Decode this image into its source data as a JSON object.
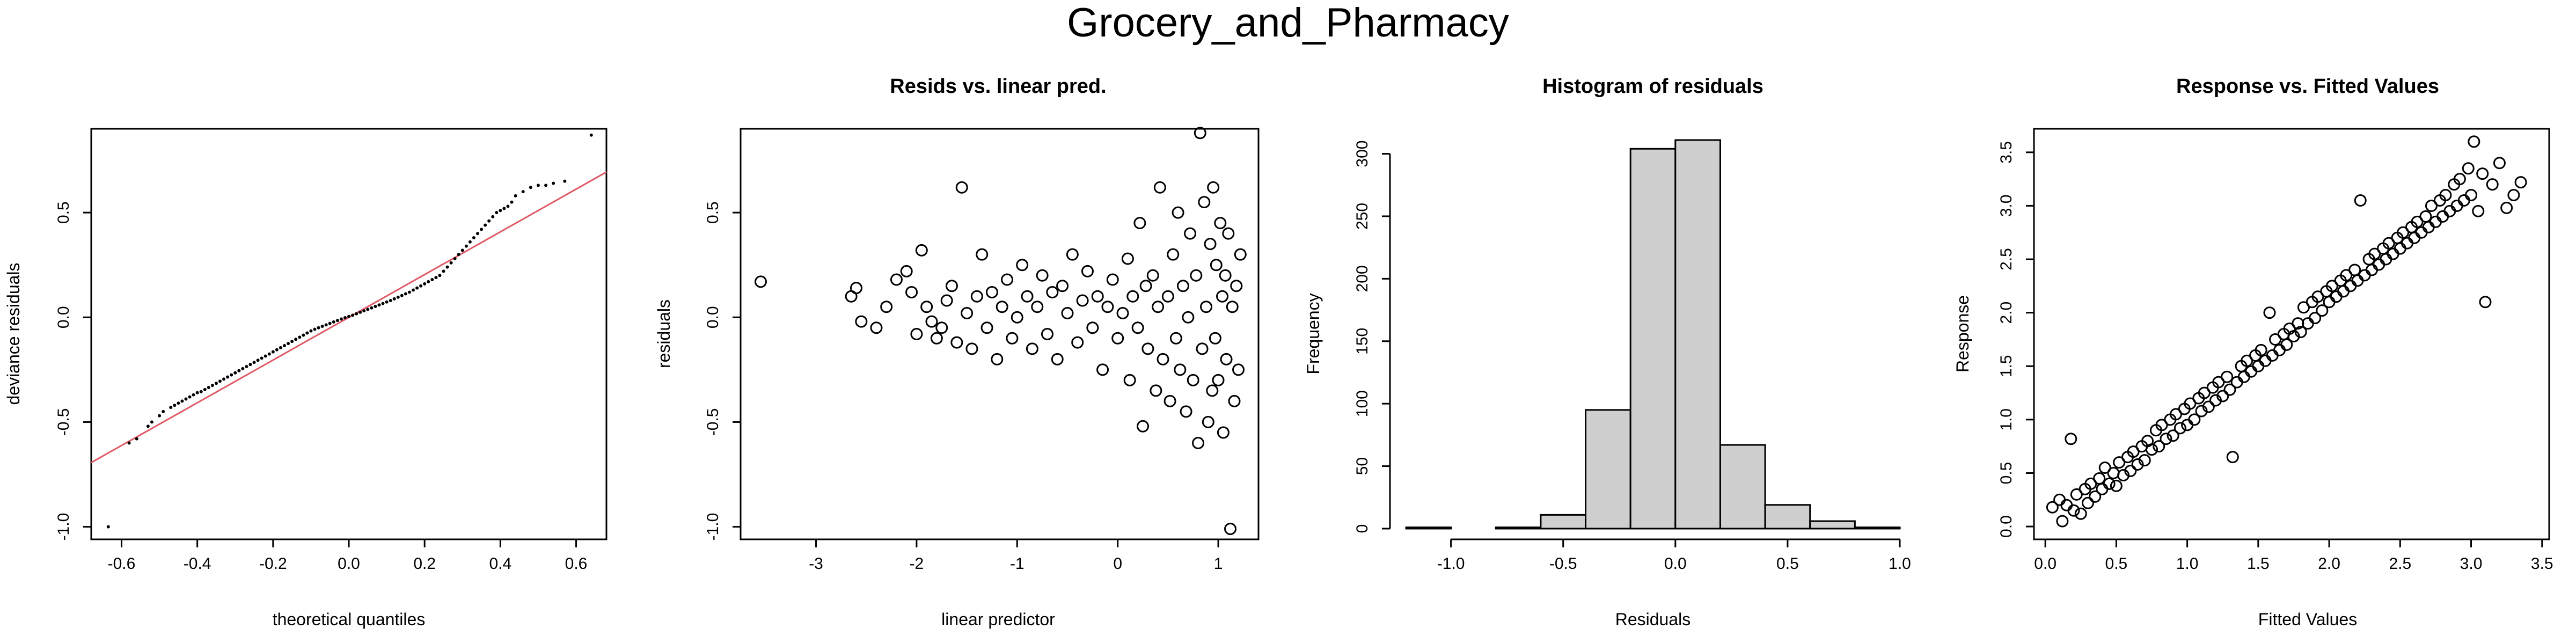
{
  "figure": {
    "title": "Grocery_and_Pharmacy"
  },
  "chart_data": [
    {
      "type": "scatter",
      "title": "",
      "xlabel": "theoretical quantiles",
      "ylabel": "deviance residuals",
      "xlim": [
        -0.68,
        0.68
      ],
      "ylim": [
        -1.06,
        0.9
      ],
      "xticks": [
        -0.6,
        -0.4,
        -0.2,
        0.0,
        0.2,
        0.4,
        0.6
      ],
      "yticks": [
        -1.0,
        -0.5,
        0.0,
        0.5
      ],
      "reference_line": {
        "slope": 1.02,
        "intercept": 0.0,
        "color": "#e05a66"
      },
      "points": [
        [
          -0.635,
          -1.0
        ],
        [
          -0.58,
          -0.6
        ],
        [
          -0.56,
          -0.58
        ],
        [
          -0.53,
          -0.52
        ],
        [
          -0.52,
          -0.5
        ],
        [
          -0.5,
          -0.47
        ],
        [
          -0.49,
          -0.45
        ],
        [
          -0.47,
          -0.43
        ],
        [
          -0.46,
          -0.42
        ],
        [
          -0.45,
          -0.41
        ],
        [
          -0.44,
          -0.4
        ],
        [
          -0.43,
          -0.39
        ],
        [
          -0.42,
          -0.38
        ],
        [
          -0.41,
          -0.37
        ],
        [
          -0.4,
          -0.36
        ],
        [
          -0.39,
          -0.355
        ],
        [
          -0.38,
          -0.345
        ],
        [
          -0.37,
          -0.335
        ],
        [
          -0.36,
          -0.325
        ],
        [
          -0.35,
          -0.315
        ],
        [
          -0.34,
          -0.305
        ],
        [
          -0.33,
          -0.295
        ],
        [
          -0.32,
          -0.285
        ],
        [
          -0.31,
          -0.275
        ],
        [
          -0.3,
          -0.265
        ],
        [
          -0.29,
          -0.255
        ],
        [
          -0.28,
          -0.245
        ],
        [
          -0.27,
          -0.235
        ],
        [
          -0.26,
          -0.225
        ],
        [
          -0.25,
          -0.215
        ],
        [
          -0.24,
          -0.205
        ],
        [
          -0.23,
          -0.195
        ],
        [
          -0.22,
          -0.185
        ],
        [
          -0.21,
          -0.175
        ],
        [
          -0.2,
          -0.165
        ],
        [
          -0.19,
          -0.155
        ],
        [
          -0.18,
          -0.145
        ],
        [
          -0.17,
          -0.135
        ],
        [
          -0.16,
          -0.125
        ],
        [
          -0.15,
          -0.115
        ],
        [
          -0.14,
          -0.105
        ],
        [
          -0.13,
          -0.095
        ],
        [
          -0.12,
          -0.085
        ],
        [
          -0.11,
          -0.075
        ],
        [
          -0.1,
          -0.065
        ],
        [
          -0.09,
          -0.057
        ],
        [
          -0.08,
          -0.05
        ],
        [
          -0.07,
          -0.043
        ],
        [
          -0.06,
          -0.036
        ],
        [
          -0.05,
          -0.029
        ],
        [
          -0.04,
          -0.022
        ],
        [
          -0.03,
          -0.015
        ],
        [
          -0.02,
          -0.008
        ],
        [
          -0.01,
          -0.002
        ],
        [
          0.0,
          0.004
        ],
        [
          0.01,
          0.01
        ],
        [
          0.02,
          0.017
        ],
        [
          0.03,
          0.024
        ],
        [
          0.04,
          0.031
        ],
        [
          0.05,
          0.038
        ],
        [
          0.06,
          0.045
        ],
        [
          0.07,
          0.052
        ],
        [
          0.08,
          0.059
        ],
        [
          0.09,
          0.066
        ],
        [
          0.1,
          0.073
        ],
        [
          0.11,
          0.08
        ],
        [
          0.12,
          0.088
        ],
        [
          0.13,
          0.096
        ],
        [
          0.14,
          0.104
        ],
        [
          0.15,
          0.112
        ],
        [
          0.16,
          0.12
        ],
        [
          0.17,
          0.13
        ],
        [
          0.18,
          0.14
        ],
        [
          0.19,
          0.15
        ],
        [
          0.2,
          0.16
        ],
        [
          0.21,
          0.17
        ],
        [
          0.22,
          0.18
        ],
        [
          0.23,
          0.19
        ],
        [
          0.24,
          0.2
        ],
        [
          0.25,
          0.22
        ],
        [
          0.26,
          0.24
        ],
        [
          0.27,
          0.26
        ],
        [
          0.28,
          0.28
        ],
        [
          0.29,
          0.3
        ],
        [
          0.3,
          0.32
        ],
        [
          0.31,
          0.34
        ],
        [
          0.32,
          0.36
        ],
        [
          0.33,
          0.38
        ],
        [
          0.34,
          0.4
        ],
        [
          0.35,
          0.42
        ],
        [
          0.36,
          0.44
        ],
        [
          0.37,
          0.46
        ],
        [
          0.38,
          0.48
        ],
        [
          0.39,
          0.5
        ],
        [
          0.4,
          0.51
        ],
        [
          0.41,
          0.52
        ],
        [
          0.42,
          0.53
        ],
        [
          0.43,
          0.55
        ],
        [
          0.44,
          0.58
        ],
        [
          0.46,
          0.6
        ],
        [
          0.48,
          0.62
        ],
        [
          0.5,
          0.63
        ],
        [
          0.52,
          0.63
        ],
        [
          0.54,
          0.64
        ],
        [
          0.57,
          0.65
        ],
        [
          0.64,
          0.87
        ]
      ]
    },
    {
      "type": "scatter",
      "title": "Resids vs. linear pred.",
      "xlabel": "linear predictor",
      "ylabel": "residuals",
      "xlim": [
        -3.75,
        1.4
      ],
      "ylim": [
        -1.06,
        0.9
      ],
      "xticks": [
        -3,
        -2,
        -1,
        0,
        1
      ],
      "yticks": [
        -1.0,
        -0.5,
        0.0,
        0.5
      ],
      "points": [
        [
          -3.55,
          0.17
        ],
        [
          -2.65,
          0.1
        ],
        [
          -2.6,
          0.14
        ],
        [
          -2.55,
          -0.02
        ],
        [
          -2.4,
          -0.05
        ],
        [
          -2.3,
          0.05
        ],
        [
          -2.2,
          0.18
        ],
        [
          -2.1,
          0.22
        ],
        [
          -2.05,
          0.12
        ],
        [
          -2.0,
          -0.08
        ],
        [
          -1.95,
          0.32
        ],
        [
          -1.9,
          0.05
        ],
        [
          -1.85,
          -0.02
        ],
        [
          -1.8,
          -0.1
        ],
        [
          -1.75,
          -0.05
        ],
        [
          -1.7,
          0.08
        ],
        [
          -1.65,
          0.15
        ],
        [
          -1.6,
          -0.12
        ],
        [
          -1.55,
          0.62
        ],
        [
          -1.5,
          0.02
        ],
        [
          -1.45,
          -0.15
        ],
        [
          -1.4,
          0.1
        ],
        [
          -1.35,
          0.3
        ],
        [
          -1.3,
          -0.05
        ],
        [
          -1.25,
          0.12
        ],
        [
          -1.2,
          -0.2
        ],
        [
          -1.15,
          0.05
        ],
        [
          -1.1,
          0.18
        ],
        [
          -1.05,
          -0.1
        ],
        [
          -1.0,
          0.0
        ],
        [
          -0.95,
          0.25
        ],
        [
          -0.9,
          0.1
        ],
        [
          -0.85,
          -0.15
        ],
        [
          -0.8,
          0.05
        ],
        [
          -0.75,
          0.2
        ],
        [
          -0.7,
          -0.08
        ],
        [
          -0.65,
          0.12
        ],
        [
          -0.6,
          -0.2
        ],
        [
          -0.55,
          0.15
        ],
        [
          -0.5,
          0.02
        ],
        [
          -0.45,
          0.3
        ],
        [
          -0.4,
          -0.12
        ],
        [
          -0.35,
          0.08
        ],
        [
          -0.3,
          0.22
        ],
        [
          -0.25,
          -0.05
        ],
        [
          -0.2,
          0.1
        ],
        [
          -0.15,
          -0.25
        ],
        [
          -0.1,
          0.05
        ],
        [
          -0.05,
          0.18
        ],
        [
          0.0,
          -0.1
        ],
        [
          0.05,
          0.02
        ],
        [
          0.1,
          0.28
        ],
        [
          0.12,
          -0.3
        ],
        [
          0.15,
          0.1
        ],
        [
          0.2,
          -0.05
        ],
        [
          0.22,
          0.45
        ],
        [
          0.25,
          -0.52
        ],
        [
          0.28,
          0.15
        ],
        [
          0.3,
          -0.15
        ],
        [
          0.35,
          0.2
        ],
        [
          0.38,
          -0.35
        ],
        [
          0.4,
          0.05
        ],
        [
          0.42,
          0.62
        ],
        [
          0.45,
          -0.2
        ],
        [
          0.5,
          0.1
        ],
        [
          0.52,
          -0.4
        ],
        [
          0.55,
          0.3
        ],
        [
          0.58,
          -0.1
        ],
        [
          0.6,
          0.5
        ],
        [
          0.62,
          -0.25
        ],
        [
          0.65,
          0.15
        ],
        [
          0.68,
          -0.45
        ],
        [
          0.7,
          0.0
        ],
        [
          0.72,
          0.4
        ],
        [
          0.75,
          -0.3
        ],
        [
          0.78,
          0.2
        ],
        [
          0.8,
          -0.6
        ],
        [
          0.82,
          0.88
        ],
        [
          0.84,
          -0.15
        ],
        [
          0.86,
          0.55
        ],
        [
          0.88,
          0.05
        ],
        [
          0.9,
          -0.5
        ],
        [
          0.92,
          0.35
        ],
        [
          0.94,
          -0.35
        ],
        [
          0.95,
          0.62
        ],
        [
          0.97,
          -0.1
        ],
        [
          0.98,
          0.25
        ],
        [
          1.0,
          -0.3
        ],
        [
          1.02,
          0.45
        ],
        [
          1.04,
          0.1
        ],
        [
          1.05,
          -0.55
        ],
        [
          1.07,
          0.2
        ],
        [
          1.08,
          -0.2
        ],
        [
          1.1,
          0.4
        ],
        [
          1.12,
          -1.01
        ],
        [
          1.14,
          0.05
        ],
        [
          1.16,
          -0.4
        ],
        [
          1.18,
          0.15
        ],
        [
          1.2,
          -0.25
        ],
        [
          1.22,
          0.3
        ]
      ]
    },
    {
      "type": "bar",
      "title": "Histogram of residuals",
      "xlabel": "Residuals",
      "ylabel": "Frequency",
      "xlim": [
        -1.2,
        1.0
      ],
      "ylim": [
        0,
        320
      ],
      "xticks": [
        -1.0,
        -0.5,
        0.0,
        0.5,
        1.0
      ],
      "yticks": [
        0,
        50,
        100,
        150,
        200,
        250,
        300
      ],
      "bin_edges": [
        -1.2,
        -1.0,
        -0.8,
        -0.6,
        -0.4,
        -0.2,
        0.0,
        0.2,
        0.4,
        0.6,
        0.8,
        1.0
      ],
      "counts": [
        1,
        0,
        1,
        11,
        95,
        304,
        311,
        67,
        19,
        6,
        1
      ],
      "bar_color": "#cfcfcf"
    },
    {
      "type": "scatter",
      "title": "Response vs. Fitted Values",
      "xlabel": "Fitted Values",
      "ylabel": "Response",
      "xlim": [
        -0.08,
        3.55
      ],
      "ylim": [
        -0.12,
        3.72
      ],
      "xticks": [
        0.0,
        0.5,
        1.0,
        1.5,
        2.0,
        2.5,
        3.0,
        3.5
      ],
      "yticks": [
        0.0,
        0.5,
        1.0,
        1.5,
        2.0,
        2.5,
        3.0,
        3.5
      ],
      "points": [
        [
          0.05,
          0.18
        ],
        [
          0.1,
          0.25
        ],
        [
          0.12,
          0.05
        ],
        [
          0.15,
          0.2
        ],
        [
          0.18,
          0.82
        ],
        [
          0.2,
          0.15
        ],
        [
          0.22,
          0.3
        ],
        [
          0.25,
          0.12
        ],
        [
          0.28,
          0.35
        ],
        [
          0.3,
          0.22
        ],
        [
          0.32,
          0.4
        ],
        [
          0.35,
          0.28
        ],
        [
          0.38,
          0.45
        ],
        [
          0.4,
          0.35
        ],
        [
          0.42,
          0.55
        ],
        [
          0.45,
          0.4
        ],
        [
          0.48,
          0.5
        ],
        [
          0.5,
          0.38
        ],
        [
          0.52,
          0.6
        ],
        [
          0.55,
          0.48
        ],
        [
          0.58,
          0.65
        ],
        [
          0.6,
          0.52
        ],
        [
          0.62,
          0.7
        ],
        [
          0.65,
          0.58
        ],
        [
          0.68,
          0.75
        ],
        [
          0.7,
          0.62
        ],
        [
          0.72,
          0.8
        ],
        [
          0.75,
          0.72
        ],
        [
          0.78,
          0.9
        ],
        [
          0.8,
          0.75
        ],
        [
          0.82,
          0.95
        ],
        [
          0.85,
          0.82
        ],
        [
          0.88,
          1.0
        ],
        [
          0.9,
          0.85
        ],
        [
          0.92,
          1.05
        ],
        [
          0.95,
          0.92
        ],
        [
          0.98,
          1.1
        ],
        [
          1.0,
          0.95
        ],
        [
          1.02,
          1.15
        ],
        [
          1.05,
          1.0
        ],
        [
          1.08,
          1.2
        ],
        [
          1.1,
          1.08
        ],
        [
          1.12,
          1.25
        ],
        [
          1.15,
          1.12
        ],
        [
          1.18,
          1.3
        ],
        [
          1.2,
          1.18
        ],
        [
          1.22,
          1.35
        ],
        [
          1.25,
          1.22
        ],
        [
          1.28,
          1.4
        ],
        [
          1.3,
          1.28
        ],
        [
          1.32,
          0.65
        ],
        [
          1.35,
          1.35
        ],
        [
          1.38,
          1.5
        ],
        [
          1.4,
          1.4
        ],
        [
          1.42,
          1.55
        ],
        [
          1.45,
          1.45
        ],
        [
          1.48,
          1.6
        ],
        [
          1.5,
          1.5
        ],
        [
          1.52,
          1.65
        ],
        [
          1.55,
          1.55
        ],
        [
          1.58,
          2.0
        ],
        [
          1.6,
          1.6
        ],
        [
          1.62,
          1.75
        ],
        [
          1.65,
          1.65
        ],
        [
          1.68,
          1.8
        ],
        [
          1.7,
          1.7
        ],
        [
          1.72,
          1.85
        ],
        [
          1.75,
          1.78
        ],
        [
          1.78,
          1.9
        ],
        [
          1.8,
          1.82
        ],
        [
          1.82,
          2.05
        ],
        [
          1.85,
          1.9
        ],
        [
          1.88,
          2.1
        ],
        [
          1.9,
          1.95
        ],
        [
          1.92,
          2.15
        ],
        [
          1.95,
          2.02
        ],
        [
          1.98,
          2.2
        ],
        [
          2.0,
          2.1
        ],
        [
          2.02,
          2.25
        ],
        [
          2.05,
          2.15
        ],
        [
          2.08,
          2.3
        ],
        [
          2.1,
          2.2
        ],
        [
          2.12,
          2.35
        ],
        [
          2.15,
          2.25
        ],
        [
          2.18,
          2.4
        ],
        [
          2.2,
          2.3
        ],
        [
          2.22,
          3.05
        ],
        [
          2.25,
          2.35
        ],
        [
          2.28,
          2.5
        ],
        [
          2.3,
          2.4
        ],
        [
          2.32,
          2.55
        ],
        [
          2.35,
          2.45
        ],
        [
          2.38,
          2.6
        ],
        [
          2.4,
          2.5
        ],
        [
          2.42,
          2.65
        ],
        [
          2.45,
          2.55
        ],
        [
          2.48,
          2.7
        ],
        [
          2.5,
          2.6
        ],
        [
          2.52,
          2.75
        ],
        [
          2.55,
          2.65
        ],
        [
          2.58,
          2.8
        ],
        [
          2.6,
          2.7
        ],
        [
          2.62,
          2.85
        ],
        [
          2.65,
          2.75
        ],
        [
          2.68,
          2.9
        ],
        [
          2.7,
          2.8
        ],
        [
          2.72,
          3.0
        ],
        [
          2.75,
          2.85
        ],
        [
          2.78,
          3.05
        ],
        [
          2.8,
          2.9
        ],
        [
          2.82,
          3.1
        ],
        [
          2.85,
          2.95
        ],
        [
          2.88,
          3.2
        ],
        [
          2.9,
          3.0
        ],
        [
          2.92,
          3.25
        ],
        [
          2.95,
          3.05
        ],
        [
          2.98,
          3.35
        ],
        [
          3.0,
          3.1
        ],
        [
          3.02,
          3.6
        ],
        [
          3.05,
          2.95
        ],
        [
          3.08,
          3.3
        ],
        [
          3.1,
          2.1
        ],
        [
          3.15,
          3.2
        ],
        [
          3.2,
          3.4
        ],
        [
          3.25,
          2.98
        ],
        [
          3.3,
          3.1
        ],
        [
          3.35,
          3.22
        ]
      ]
    }
  ]
}
